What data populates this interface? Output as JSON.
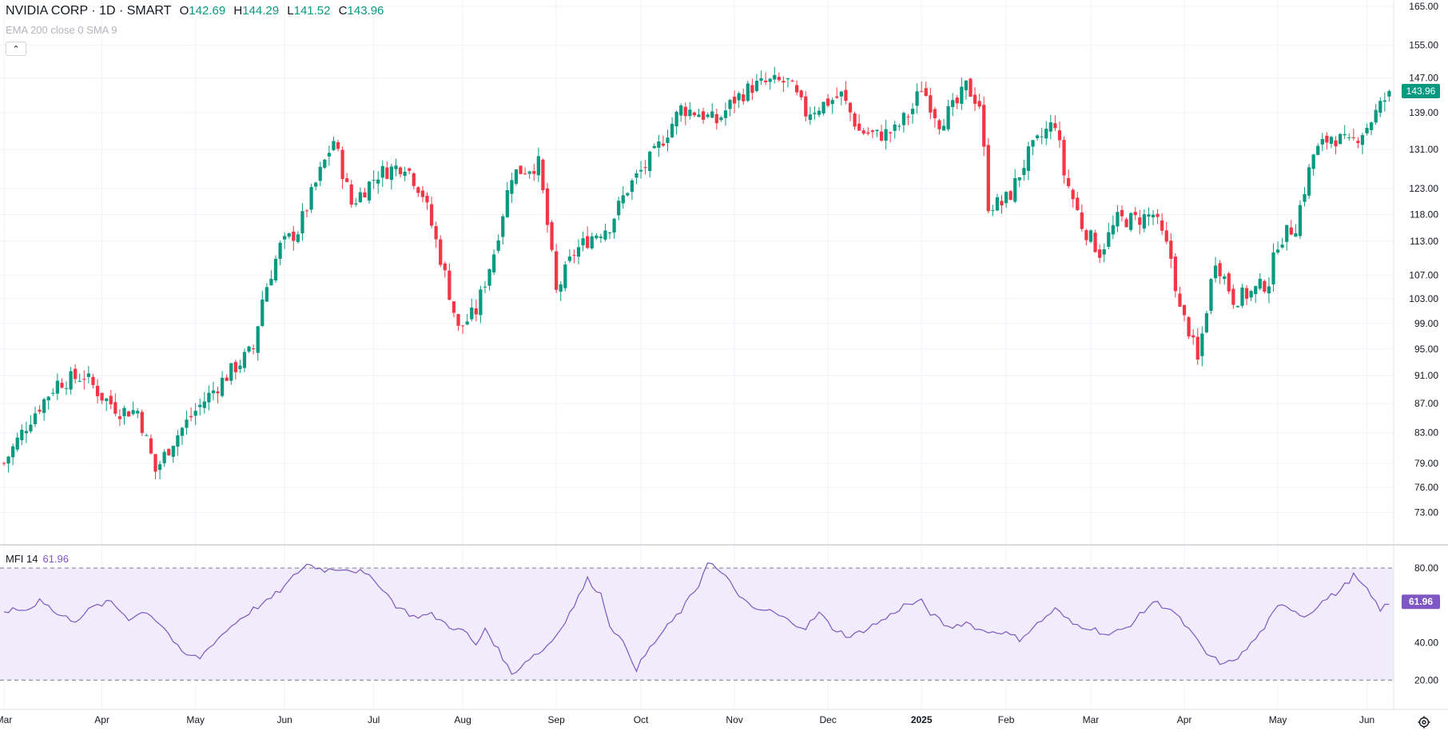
{
  "legend": {
    "symbol": "NVIDIA CORP · 1D · SMART",
    "o_key": "O",
    "o": "142.69",
    "h_key": "H",
    "h": "144.29",
    "l_key": "L",
    "l": "141.52",
    "c_key": "C",
    "c": "143.96",
    "indicators": "EMA 200 close 0 SMA 9",
    "collapse_glyph": "⌃"
  },
  "mfi_legend": {
    "name": "MFI 14",
    "value": "61.96"
  },
  "colors": {
    "up": "#089981",
    "down": "#f23645",
    "mfi": "#7e57c2",
    "mfi_band": "#f0ecfb",
    "grid": "#f0f3fa"
  },
  "icons": {
    "settings": "gear-icon"
  },
  "chart_data": [
    {
      "type": "candlestick",
      "ylim": [
        70,
        165
      ],
      "y_ticks": [
        "165.00",
        "155.00",
        "147.00",
        "139.00",
        "131.00",
        "123.00",
        "118.00",
        "113.00",
        "107.00",
        "103.00",
        "99.00",
        "95.00",
        "91.00",
        "87.00",
        "83.00",
        "79.00",
        "76.00",
        "73.00"
      ],
      "last_price": "143.96",
      "x_ticks": [
        "Mar",
        "Apr",
        "May",
        "Jun",
        "Jul",
        "Aug",
        "Sep",
        "Oct",
        "Nov",
        "Dec",
        "2025",
        "Feb",
        "Mar",
        "Apr",
        "May",
        "Jun"
      ],
      "x_tick_bar_index": [
        0,
        22,
        43,
        63,
        83,
        103,
        124,
        143,
        164,
        185,
        206,
        225,
        244,
        265,
        286,
        306
      ],
      "n_bars": 312,
      "close_anchors": [
        [
          0,
          79
        ],
        [
          6,
          85
        ],
        [
          12,
          90
        ],
        [
          18,
          91
        ],
        [
          22,
          88
        ],
        [
          26,
          86
        ],
        [
          30,
          86
        ],
        [
          34,
          78
        ],
        [
          38,
          82
        ],
        [
          43,
          86
        ],
        [
          50,
          91
        ],
        [
          56,
          95
        ],
        [
          58,
          103
        ],
        [
          62,
          112
        ],
        [
          66,
          115
        ],
        [
          70,
          124
        ],
        [
          74,
          133
        ],
        [
          78,
          120
        ],
        [
          84,
          126
        ],
        [
          90,
          128
        ],
        [
          94,
          122
        ],
        [
          98,
          110
        ],
        [
          102,
          98
        ],
        [
          106,
          101
        ],
        [
          110,
          111
        ],
        [
          114,
          126
        ],
        [
          120,
          128
        ],
        [
          124,
          104
        ],
        [
          128,
          111
        ],
        [
          132,
          114
        ],
        [
          136,
          116
        ],
        [
          140,
          123
        ],
        [
          146,
          130
        ],
        [
          152,
          140
        ],
        [
          156,
          139
        ],
        [
          160,
          137
        ],
        [
          164,
          142
        ],
        [
          168,
          145
        ],
        [
          172,
          146
        ],
        [
          176,
          146
        ],
        [
          180,
          139
        ],
        [
          184,
          141
        ],
        [
          188,
          143
        ],
        [
          192,
          135
        ],
        [
          196,
          134
        ],
        [
          200,
          135
        ],
        [
          204,
          140
        ],
        [
          206,
          145
        ],
        [
          210,
          137
        ],
        [
          214,
          141
        ],
        [
          216,
          145
        ],
        [
          219,
          141
        ],
        [
          221,
          120
        ],
        [
          224,
          120
        ],
        [
          226,
          122
        ],
        [
          230,
          130
        ],
        [
          234,
          135
        ],
        [
          236,
          137
        ],
        [
          238,
          126
        ],
        [
          242,
          116
        ],
        [
          246,
          111
        ],
        [
          250,
          117
        ],
        [
          254,
          117
        ],
        [
          258,
          118
        ],
        [
          262,
          110
        ],
        [
          264,
          101
        ],
        [
          266,
          98
        ],
        [
          268,
          93
        ],
        [
          272,
          110
        ],
        [
          276,
          103
        ],
        [
          280,
          104
        ],
        [
          284,
          106
        ],
        [
          286,
          113
        ],
        [
          290,
          116
        ],
        [
          294,
          130
        ],
        [
          298,
          134
        ],
        [
          302,
          132
        ],
        [
          306,
          136
        ],
        [
          310,
          142
        ],
        [
          311,
          143.96
        ]
      ]
    },
    {
      "type": "line",
      "name": "MFI 14",
      "ylim": [
        12,
        92
      ],
      "y_ticks": [
        "80.00",
        "40.00",
        "20.00"
      ],
      "bands": [
        20,
        80
      ],
      "last_value": "61.96",
      "anchors": [
        [
          0,
          57
        ],
        [
          6,
          58
        ],
        [
          8,
          64
        ],
        [
          12,
          55
        ],
        [
          16,
          52
        ],
        [
          20,
          59
        ],
        [
          24,
          62
        ],
        [
          28,
          53
        ],
        [
          32,
          57
        ],
        [
          36,
          48
        ],
        [
          40,
          34
        ],
        [
          44,
          32
        ],
        [
          47,
          40
        ],
        [
          52,
          51
        ],
        [
          56,
          58
        ],
        [
          59,
          62
        ],
        [
          63,
          70
        ],
        [
          66,
          78
        ],
        [
          68,
          82
        ],
        [
          72,
          79
        ],
        [
          76,
          80
        ],
        [
          80,
          78
        ],
        [
          84,
          72
        ],
        [
          88,
          60
        ],
        [
          92,
          54
        ],
        [
          96,
          55
        ],
        [
          100,
          49
        ],
        [
          104,
          45
        ],
        [
          106,
          38
        ],
        [
          108,
          48
        ],
        [
          112,
          32
        ],
        [
          114,
          23
        ],
        [
          118,
          32
        ],
        [
          121,
          36
        ],
        [
          124,
          44
        ],
        [
          128,
          60
        ],
        [
          131,
          74
        ],
        [
          134,
          66
        ],
        [
          136,
          50
        ],
        [
          140,
          36
        ],
        [
          142,
          26
        ],
        [
          145,
          37
        ],
        [
          148,
          46
        ],
        [
          152,
          57
        ],
        [
          156,
          71
        ],
        [
          158,
          84
        ],
        [
          162,
          75
        ],
        [
          166,
          63
        ],
        [
          168,
          58
        ],
        [
          172,
          57
        ],
        [
          176,
          52
        ],
        [
          180,
          48
        ],
        [
          183,
          56
        ],
        [
          186,
          48
        ],
        [
          190,
          43
        ],
        [
          194,
          48
        ],
        [
          198,
          53
        ],
        [
          202,
          60
        ],
        [
          206,
          62
        ],
        [
          208,
          56
        ],
        [
          212,
          48
        ],
        [
          216,
          51
        ],
        [
          220,
          46
        ],
        [
          224,
          46
        ],
        [
          228,
          42
        ],
        [
          232,
          50
        ],
        [
          236,
          58
        ],
        [
          240,
          50
        ],
        [
          244,
          48
        ],
        [
          248,
          44
        ],
        [
          252,
          48
        ],
        [
          256,
          57
        ],
        [
          258,
          62
        ],
        [
          262,
          58
        ],
        [
          266,
          47
        ],
        [
          270,
          34
        ],
        [
          274,
          28
        ],
        [
          278,
          34
        ],
        [
          282,
          45
        ],
        [
          286,
          59
        ],
        [
          288,
          60
        ],
        [
          292,
          54
        ],
        [
          296,
          62
        ],
        [
          300,
          68
        ],
        [
          303,
          76
        ],
        [
          306,
          68
        ],
        [
          309,
          58
        ],
        [
          312,
          61.96
        ]
      ]
    }
  ]
}
